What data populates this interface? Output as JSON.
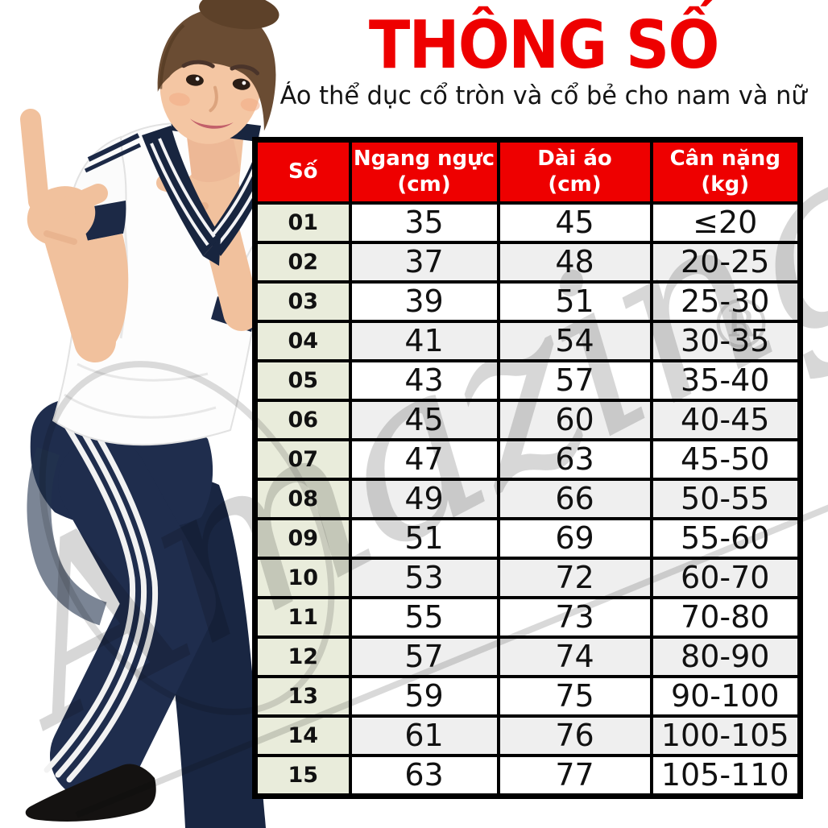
{
  "header": {
    "title": "THÔNG SỐ",
    "subtitle": "Áo thể dục cổ tròn và cổ bẻ cho nam và nữ",
    "title_color": "#ee0000"
  },
  "watermark": {
    "text": "Amazing",
    "registered_mark": "®",
    "color": "#8a8a8a"
  },
  "photo": {
    "alt": "girl-in-white-polo-and-navy-track-pants-posing"
  },
  "table": {
    "columns": [
      {
        "label": "Số",
        "unit": ""
      },
      {
        "label": "Ngang ngực",
        "unit": "(cm)"
      },
      {
        "label": "Dài áo",
        "unit": "(cm)"
      },
      {
        "label": "Cân nặng",
        "unit": "(kg)"
      }
    ],
    "rows": [
      [
        "01",
        "35",
        "45",
        "≤20"
      ],
      [
        "02",
        "37",
        "48",
        "20-25"
      ],
      [
        "03",
        "39",
        "51",
        "25-30"
      ],
      [
        "04",
        "41",
        "54",
        "30-35"
      ],
      [
        "05",
        "43",
        "57",
        "35-40"
      ],
      [
        "06",
        "45",
        "60",
        "40-45"
      ],
      [
        "07",
        "47",
        "63",
        "45-50"
      ],
      [
        "08",
        "49",
        "66",
        "50-55"
      ],
      [
        "09",
        "51",
        "69",
        "55-60"
      ],
      [
        "10",
        "53",
        "72",
        "60-70"
      ],
      [
        "11",
        "55",
        "73",
        "70-80"
      ],
      [
        "12",
        "57",
        "74",
        "80-90"
      ],
      [
        "13",
        "59",
        "75",
        "90-100"
      ],
      [
        "14",
        "61",
        "76",
        "100-105"
      ],
      [
        "15",
        "63",
        "77",
        "105-110"
      ]
    ],
    "colors": {
      "header_bg": "#ee0000",
      "header_text": "#ffffff",
      "number_col_bg": "#e9ecdb",
      "alt_row_bg": "#efefef",
      "border": "#000000"
    }
  },
  "chart_data": {
    "type": "table",
    "title": "THÔNG SỐ",
    "subtitle": "Áo thể dục cổ tròn và cổ bẻ cho nam và nữ",
    "columns": [
      "Số",
      "Ngang ngực (cm)",
      "Dài áo (cm)",
      "Cân nặng (kg)"
    ],
    "rows": [
      [
        1,
        35,
        45,
        "≤20"
      ],
      [
        2,
        37,
        48,
        "20-25"
      ],
      [
        3,
        39,
        51,
        "25-30"
      ],
      [
        4,
        41,
        54,
        "30-35"
      ],
      [
        5,
        43,
        57,
        "35-40"
      ],
      [
        6,
        45,
        60,
        "40-45"
      ],
      [
        7,
        47,
        63,
        "45-50"
      ],
      [
        8,
        49,
        66,
        "50-55"
      ],
      [
        9,
        51,
        69,
        "55-60"
      ],
      [
        10,
        53,
        72,
        "60-70"
      ],
      [
        11,
        55,
        73,
        "70-80"
      ],
      [
        12,
        57,
        74,
        "80-90"
      ],
      [
        13,
        59,
        75,
        "90-100"
      ],
      [
        14,
        61,
        76,
        "100-105"
      ],
      [
        15,
        63,
        77,
        "105-110"
      ]
    ]
  }
}
